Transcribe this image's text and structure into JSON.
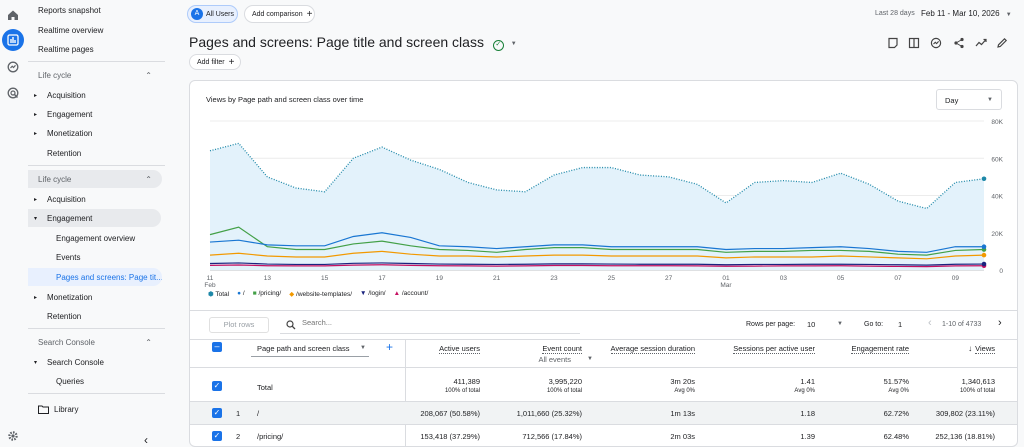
{
  "nav": {
    "reports_snapshot": "Reports snapshot",
    "realtime_overview": "Realtime overview",
    "realtime_pages": "Realtime pages",
    "section1": "Life cycle",
    "s1_items": [
      "Acquisition",
      "Engagement",
      "Monetization",
      "Retention"
    ],
    "section2": "Life cycle",
    "s2_items": [
      "Acquisition",
      "Engagement"
    ],
    "s2_sub": [
      "Engagement overview",
      "Events",
      "Pages and screens: Page tit..."
    ],
    "s2_more": [
      "Monetization",
      "Retention"
    ],
    "section3": "Search Console",
    "s3_item": "Search Console",
    "s3_sub": "Queries",
    "library": "Library"
  },
  "header": {
    "all_users_avatar": "A",
    "all_users": "All Users",
    "add_comparison": "Add comparison",
    "date_range_label": "Last 28 days",
    "date_range": "Feb 11 - Mar 10, 2026",
    "page_title": "Pages and screens: Page title and screen class",
    "add_filter": "Add filter"
  },
  "chart_card": {
    "title": "Views by Page path and screen class over time",
    "granularity": "Day"
  },
  "chart_data": {
    "type": "line",
    "x_ticks": [
      "11\nFeb",
      "13",
      "15",
      "17",
      "19",
      "21",
      "23",
      "25",
      "27",
      "01\nMar",
      "03",
      "05",
      "07",
      "09"
    ],
    "y_ticks": [
      "80K",
      "60K",
      "40K",
      "20K",
      "0"
    ],
    "ylim": [
      0,
      80000
    ],
    "x": [
      11,
      12,
      13,
      14,
      15,
      16,
      17,
      18,
      19,
      20,
      21,
      22,
      23,
      24,
      25,
      26,
      27,
      28,
      1,
      2,
      3,
      4,
      5,
      6,
      7,
      8,
      9,
      10
    ],
    "series": [
      {
        "name": "Total",
        "color": "#1e88a8",
        "style": "dotted",
        "values": [
          64000,
          68000,
          50000,
          44000,
          42000,
          60000,
          66000,
          59000,
          54000,
          47000,
          43000,
          42000,
          51000,
          55000,
          55000,
          51000,
          50000,
          46000,
          36000,
          47000,
          48000,
          47000,
          52000,
          46000,
          37000,
          33000,
          47000,
          49000
        ]
      },
      {
        "name": "/",
        "color": "#1976d2",
        "values": [
          15000,
          16000,
          13500,
          13000,
          13000,
          18000,
          20000,
          17500,
          13000,
          12500,
          11500,
          12500,
          13500,
          13500,
          12500,
          12500,
          12500,
          12500,
          11000,
          11500,
          11500,
          12000,
          12500,
          11500,
          10000,
          9500,
          12500,
          12500
        ]
      },
      {
        "name": "/pricing/",
        "color": "#43a047",
        "values": [
          19000,
          23000,
          12500,
          11000,
          11000,
          14000,
          15500,
          13000,
          11000,
          10500,
          9500,
          11000,
          12000,
          12000,
          11000,
          11000,
          11000,
          11000,
          9500,
          10000,
          10000,
          10500,
          10500,
          10000,
          8500,
          8000,
          10500,
          11000
        ]
      },
      {
        "name": "/website-templates/",
        "color": "#f29900",
        "values": [
          8000,
          9000,
          7500,
          7000,
          7000,
          9000,
          10000,
          8500,
          7500,
          7500,
          7000,
          7500,
          8000,
          8000,
          7500,
          7500,
          7500,
          7500,
          6500,
          7000,
          7000,
          7000,
          7500,
          7000,
          6500,
          6000,
          7500,
          8000
        ]
      },
      {
        "name": "/login/",
        "color": "#1a237e",
        "values": [
          3500,
          3800,
          3200,
          3000,
          3000,
          3600,
          3800,
          3500,
          3200,
          3100,
          3000,
          3100,
          3300,
          3300,
          3200,
          3100,
          3100,
          3100,
          2800,
          3000,
          3000,
          3100,
          3100,
          3000,
          2800,
          2600,
          3100,
          3200
        ]
      },
      {
        "name": "/account/",
        "color": "#c51162",
        "values": [
          2500,
          2700,
          2300,
          2200,
          2200,
          2600,
          2800,
          2500,
          2300,
          2200,
          2100,
          2200,
          2400,
          2400,
          2300,
          2300,
          2300,
          2200,
          2000,
          2100,
          2200,
          2200,
          2300,
          2100,
          1900,
          1800,
          2200,
          2300
        ]
      }
    ]
  },
  "table_controls": {
    "plot_rows": "Plot rows",
    "search_placeholder": "Search...",
    "rows_per_page_label": "Rows per page:",
    "rows_per_page": "10",
    "go_to_label": "Go to:",
    "go_to_value": "1",
    "page_range": "1-10 of 4733"
  },
  "table": {
    "dimension": "Page path and screen class",
    "columns": [
      {
        "label": "Active users",
        "sub": ""
      },
      {
        "label": "Event count",
        "sub": "All events"
      },
      {
        "label": "Average session duration",
        "sub": ""
      },
      {
        "label": "Sessions per active user",
        "sub": ""
      },
      {
        "label": "Engagement rate",
        "sub": ""
      },
      {
        "label": "Views",
        "sub": ""
      }
    ],
    "total": {
      "label": "Total",
      "values": [
        "411,389",
        "3,995,220",
        "3m 20s",
        "1.41",
        "51.57%",
        "1,340,613"
      ],
      "subs": [
        "100% of total",
        "100% of total",
        "Avg 0%",
        "Avg 0%",
        "Avg 0%",
        "100% of total"
      ]
    },
    "rows": [
      {
        "num": "1",
        "path": "/",
        "values": [
          "208,067 (50.58%)",
          "1,011,660 (25.32%)",
          "1m 13s",
          "1.18",
          "62.72%",
          "309,802 (23.11%)"
        ]
      },
      {
        "num": "2",
        "path": "/pricing/",
        "values": [
          "153,418 (37.29%)",
          "712,566 (17.84%)",
          "2m 03s",
          "1.39",
          "62.48%",
          "252,136 (18.81%)"
        ]
      }
    ]
  }
}
